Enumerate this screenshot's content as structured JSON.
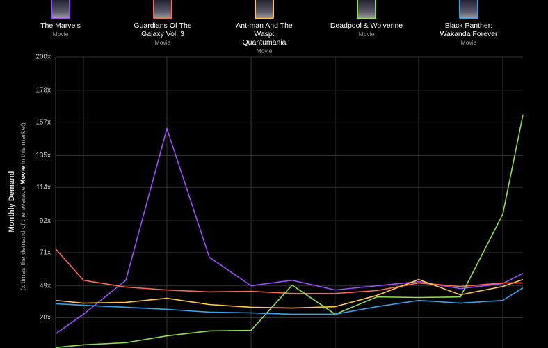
{
  "chart_data": {
    "type": "line",
    "y_label": "Monthly Demand",
    "y_label_note": [
      "(x times the demand of the average ",
      "Movie",
      " in this market)"
    ],
    "categories": [
      null,
      null,
      null,
      null,
      null,
      null,
      null,
      null,
      null,
      null,
      null,
      null,
      null
    ],
    "ylim": [
      8,
      200
    ],
    "yticks": [
      {
        "value": 28,
        "label": "28x"
      },
      {
        "value": 49,
        "label": "49x"
      },
      {
        "value": 71,
        "label": "71x"
      },
      {
        "value": 92,
        "label": "92x"
      },
      {
        "value": 114,
        "label": "114x"
      },
      {
        "value": 135,
        "label": "135x"
      },
      {
        "value": 157,
        "label": "157x"
      },
      {
        "value": 178,
        "label": "178x"
      },
      {
        "value": 200,
        "label": "200x"
      }
    ],
    "grid": true,
    "series": [
      {
        "name": "The Marvels",
        "kind": "Movie",
        "color": "#9b4dff",
        "values": [
          17.4,
          30.3,
          52.7,
          152.8,
          67.9,
          49.1,
          52.7,
          46.3,
          49.1,
          51.8,
          47.2,
          50.5,
          57.3
        ]
      },
      {
        "name": "Guardians Of The Galaxy Vol. 3",
        "kind": "Movie",
        "color": "#ff6a4d",
        "values": [
          73.4,
          52.7,
          48.2,
          46.3,
          45.0,
          45.4,
          44.0,
          44.0,
          45.9,
          50.9,
          48.6,
          50.9,
          50.9
        ]
      },
      {
        "name": "Ant-man And The Wasp: Quantumania",
        "kind": "Movie",
        "color": "#ffc83d",
        "values": [
          39.4,
          37.6,
          38.1,
          40.8,
          36.7,
          34.9,
          34.4,
          35.3,
          42.7,
          53.2,
          43.1,
          48.6,
          53.2
        ]
      },
      {
        "name": "Deadpool & Wolverine",
        "kind": "Movie",
        "color": "#8fe04a",
        "values": [
          8.3,
          10.1,
          11.5,
          16.0,
          19.3,
          19.7,
          49.5,
          30.3,
          41.7,
          41.3,
          41.7,
          96.3,
          161.9
        ]
      },
      {
        "name": "Black Panther: Wakanda Forever",
        "kind": "Movie",
        "color": "#2fa8f0",
        "values": [
          37.2,
          36.2,
          34.9,
          33.5,
          31.7,
          31.2,
          30.3,
          30.3,
          35.3,
          39.4,
          37.6,
          39.4,
          47.7
        ]
      }
    ]
  }
}
